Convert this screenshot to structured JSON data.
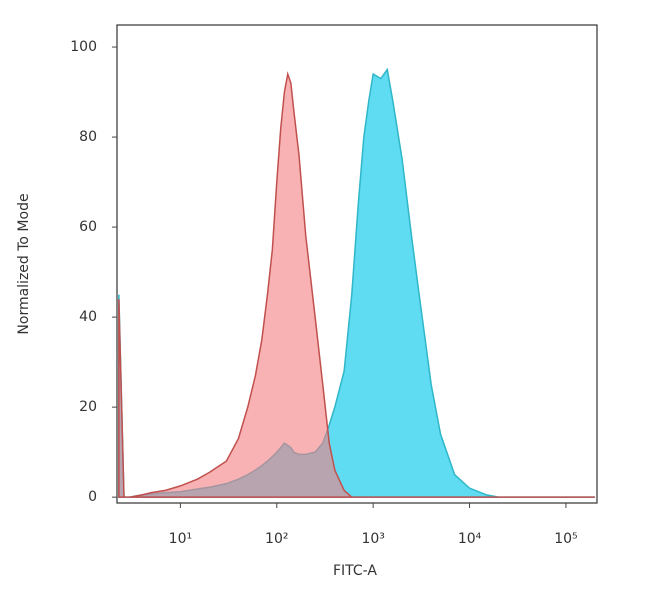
{
  "chart_data": {
    "type": "area",
    "xlabel": "FITC-A",
    "ylabel": "Normalized To Mode",
    "xscale": "log",
    "x": [
      2.3,
      2.6,
      3,
      4,
      5,
      7,
      10,
      15,
      20,
      30,
      40,
      50,
      60,
      70,
      80,
      90,
      100,
      110,
      120,
      130,
      140,
      150,
      170,
      200,
      250,
      300,
      350,
      400,
      500,
      600,
      700,
      800,
      900,
      1000,
      1200,
      1400,
      1600,
      2000,
      2500,
      3000,
      4000,
      5000,
      7000,
      10000,
      15000,
      20000,
      50000,
      200000
    ],
    "series": [
      {
        "color": "#5fdcf2",
        "stroke": "#2fb6c8",
        "values": [
          45,
          0,
          0,
          0.5,
          0.7,
          1,
          1.2,
          1.8,
          2.2,
          3,
          4,
          5,
          6,
          7,
          8,
          9,
          10,
          11,
          12,
          11.5,
          11,
          10,
          9.5,
          9.5,
          10,
          12,
          16,
          20,
          28,
          45,
          65,
          80,
          88,
          94,
          93,
          95,
          88,
          75,
          58,
          45,
          25,
          14,
          5,
          2,
          0.5,
          0,
          0,
          0
        ]
      },
      {
        "color": "#f47f82",
        "stroke": "#c0504d",
        "values": [
          44,
          0,
          0,
          0.5,
          1,
          1.5,
          2.5,
          4,
          5.5,
          8,
          13,
          20,
          27,
          35,
          45,
          55,
          70,
          82,
          90,
          94,
          92,
          86,
          76,
          58,
          40,
          25,
          12,
          6,
          1.5,
          0,
          0,
          0,
          0,
          0,
          0,
          0,
          0,
          0,
          0,
          0,
          0,
          0,
          0,
          0,
          0,
          0,
          0,
          0
        ]
      }
    ],
    "xlim": [
      2.2,
      210000
    ],
    "ylim": [
      -1.3,
      104.9
    ],
    "xticks": [
      {
        "value": 10,
        "label": "10¹"
      },
      {
        "value": 100,
        "label": "10²"
      },
      {
        "value": 1000,
        "label": "10³"
      },
      {
        "value": 10000,
        "label": "10⁴"
      },
      {
        "value": 100000,
        "label": "10⁵"
      }
    ],
    "yticks": [
      0,
      20,
      40,
      60,
      80,
      100
    ]
  }
}
